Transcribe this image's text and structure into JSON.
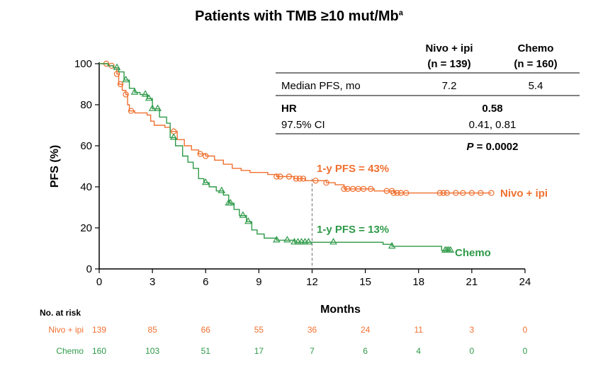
{
  "chart_data": {
    "type": "line",
    "title": "Patients with TMB ≥10 mut/Mb",
    "title_superscript": "a",
    "xlabel": "Months",
    "ylabel": "PFS (%)",
    "xlim": [
      0,
      24
    ],
    "ylim": [
      0,
      100
    ],
    "xticks": [
      0,
      3,
      6,
      9,
      12,
      15,
      18,
      21,
      24
    ],
    "yticks": [
      0,
      20,
      40,
      60,
      80,
      100
    ],
    "grid": false,
    "colors": {
      "nivo": "#f07030",
      "chemo": "#2e9a48",
      "guide": "#7f7f7f"
    },
    "series": [
      {
        "name": "Nivo + ipi",
        "marker": "circle",
        "x": [
          0,
          0.3,
          0.5,
          0.8,
          1.0,
          1.1,
          1.3,
          1.5,
          1.6,
          1.7,
          2.0,
          2.3,
          2.7,
          2.9,
          3.1,
          3.4,
          3.7,
          4.0,
          4.4,
          4.8,
          5.2,
          5.6,
          6.0,
          6.5,
          7.0,
          7.5,
          8.0,
          8.5,
          9.0,
          9.5,
          10.0,
          10.5,
          11.0,
          11.6,
          12.2,
          12.8,
          13.3,
          13.8,
          14.5,
          15.0,
          15.5,
          16.2,
          16.6,
          17.0,
          17.5,
          18.0,
          19.0,
          20.0,
          21.0,
          22.0
        ],
        "y": [
          100,
          100,
          99,
          98,
          95,
          90,
          87,
          85,
          80,
          77,
          76,
          76,
          75,
          72,
          70,
          70,
          69,
          67,
          63,
          60,
          58,
          56,
          55,
          53,
          51,
          49,
          48,
          47,
          47,
          46,
          45,
          45,
          44,
          43,
          43,
          42,
          41,
          39,
          39,
          39,
          38,
          38,
          37,
          37,
          37,
          37,
          37,
          37,
          37,
          37
        ],
        "censored_x": [
          0.4,
          0.7,
          1.0,
          1.2,
          1.5,
          1.8,
          4.2,
          5.7,
          6.0,
          10.0,
          10.2,
          10.7,
          11.1,
          11.3,
          11.5,
          12.2,
          12.8,
          13.8,
          14.0,
          14.3,
          14.6,
          14.9,
          15.3,
          16.2,
          16.5,
          16.6,
          16.8,
          17.0,
          17.3,
          19.2,
          19.4,
          19.6,
          20.1,
          20.5,
          21.0,
          21.5,
          22.1
        ],
        "label_points": [
          {
            "x": 12.0,
            "y": 43
          }
        ]
      },
      {
        "name": "Chemo",
        "marker": "triangle",
        "x": [
          0,
          0.5,
          0.8,
          1.1,
          1.4,
          1.7,
          2.0,
          2.3,
          2.7,
          3.0,
          3.4,
          3.8,
          4.0,
          4.3,
          4.7,
          5.0,
          5.3,
          5.6,
          5.9,
          6.2,
          6.6,
          7.0,
          7.3,
          7.6,
          7.9,
          8.3,
          8.6,
          8.9,
          9.3,
          10.0,
          10.5,
          11.0,
          12.0,
          13.0,
          14.0,
          15.0,
          16.0,
          16.5,
          17.5,
          18.5,
          19.3,
          19.7
        ],
        "y": [
          100,
          99,
          98,
          96,
          92,
          88,
          86,
          85,
          83,
          78,
          74,
          71,
          64,
          60,
          55,
          52,
          49,
          44,
          42,
          40,
          38,
          36,
          32,
          29,
          26,
          23,
          19,
          17,
          15,
          14,
          14,
          13,
          13,
          13,
          13,
          13,
          12,
          11,
          11,
          11,
          9,
          9
        ],
        "censored_x": [
          1.0,
          1.5,
          2.0,
          2.6,
          2.8,
          3.0,
          3.3,
          4.2,
          6.0,
          6.9,
          7.3,
          7.4,
          8.1,
          8.4,
          10.0,
          10.6,
          11.0,
          11.2,
          11.4,
          11.6,
          11.8,
          13.2,
          16.5,
          19.5,
          19.6,
          19.7,
          19.8
        ]
      }
    ],
    "annotations": [
      {
        "text": "1-y PFS = 43%",
        "series": "Nivo + ipi"
      },
      {
        "text": "1-y PFS = 13%",
        "series": "Chemo"
      }
    ],
    "end_labels": [
      "Nivo + ipi",
      "Chemo"
    ],
    "guide_line_x": 12,
    "summary_table": {
      "col_headers": [
        {
          "line1": "Nivo + ipi",
          "line2": "(n = 139)"
        },
        {
          "line1": "Chemo",
          "line2": "(n = 160)"
        }
      ],
      "median_label": "Median PFS, mo",
      "median_values": [
        "7.2",
        "5.4"
      ],
      "hr_label": "HR",
      "hr_value": "0.58",
      "ci_label": "97.5% CI",
      "ci_value": "0.41, 0.81",
      "p_prefix": "P",
      "p_value": " = 0.0002"
    },
    "at_risk": {
      "title": "No. at risk",
      "times": [
        0,
        3,
        6,
        9,
        12,
        15,
        18,
        21,
        24
      ],
      "rows": [
        {
          "label": "Nivo + ipi",
          "values": [
            "139",
            "85",
            "66",
            "55",
            "36",
            "24",
            "11",
            "3",
            "0"
          ]
        },
        {
          "label": "Chemo",
          "values": [
            "160",
            "103",
            "51",
            "17",
            "7",
            "6",
            "4",
            "0",
            "0"
          ]
        }
      ]
    }
  }
}
